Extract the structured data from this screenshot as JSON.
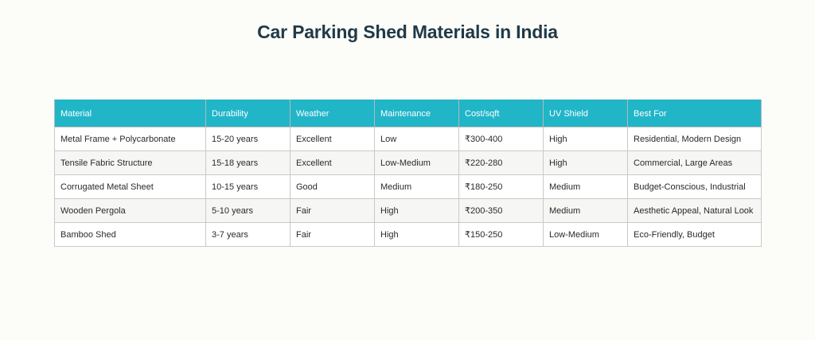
{
  "title": "Car Parking Shed Materials in India",
  "table": {
    "headers": [
      "Material",
      "Durability",
      "Weather",
      "Maintenance",
      "Cost/sqft",
      "UV Shield",
      "Best For"
    ],
    "rows": [
      [
        "Metal Frame + Polycarbonate",
        "15-20 years",
        "Excellent",
        "Low",
        "₹300-400",
        "High",
        "Residential, Modern Design"
      ],
      [
        "Tensile Fabric Structure",
        "15-18 years",
        "Excellent",
        "Low-Medium",
        "₹220-280",
        "High",
        "Commercial, Large Areas"
      ],
      [
        "Corrugated Metal Sheet",
        "10-15 years",
        "Good",
        "Medium",
        "₹180-250",
        "Medium",
        "Budget-Conscious, Industrial"
      ],
      [
        "Wooden Pergola",
        "5-10 years",
        "Fair",
        "High",
        "₹200-350",
        "Medium",
        "Aesthetic Appeal, Natural Look"
      ],
      [
        "Bamboo Shed",
        "3-7 years",
        "Fair",
        "High",
        "₹150-250",
        "Low-Medium",
        "Eco-Friendly, Budget"
      ]
    ]
  },
  "colors": {
    "header_bg": "#21b5c8",
    "title_text": "#1f3a47"
  }
}
